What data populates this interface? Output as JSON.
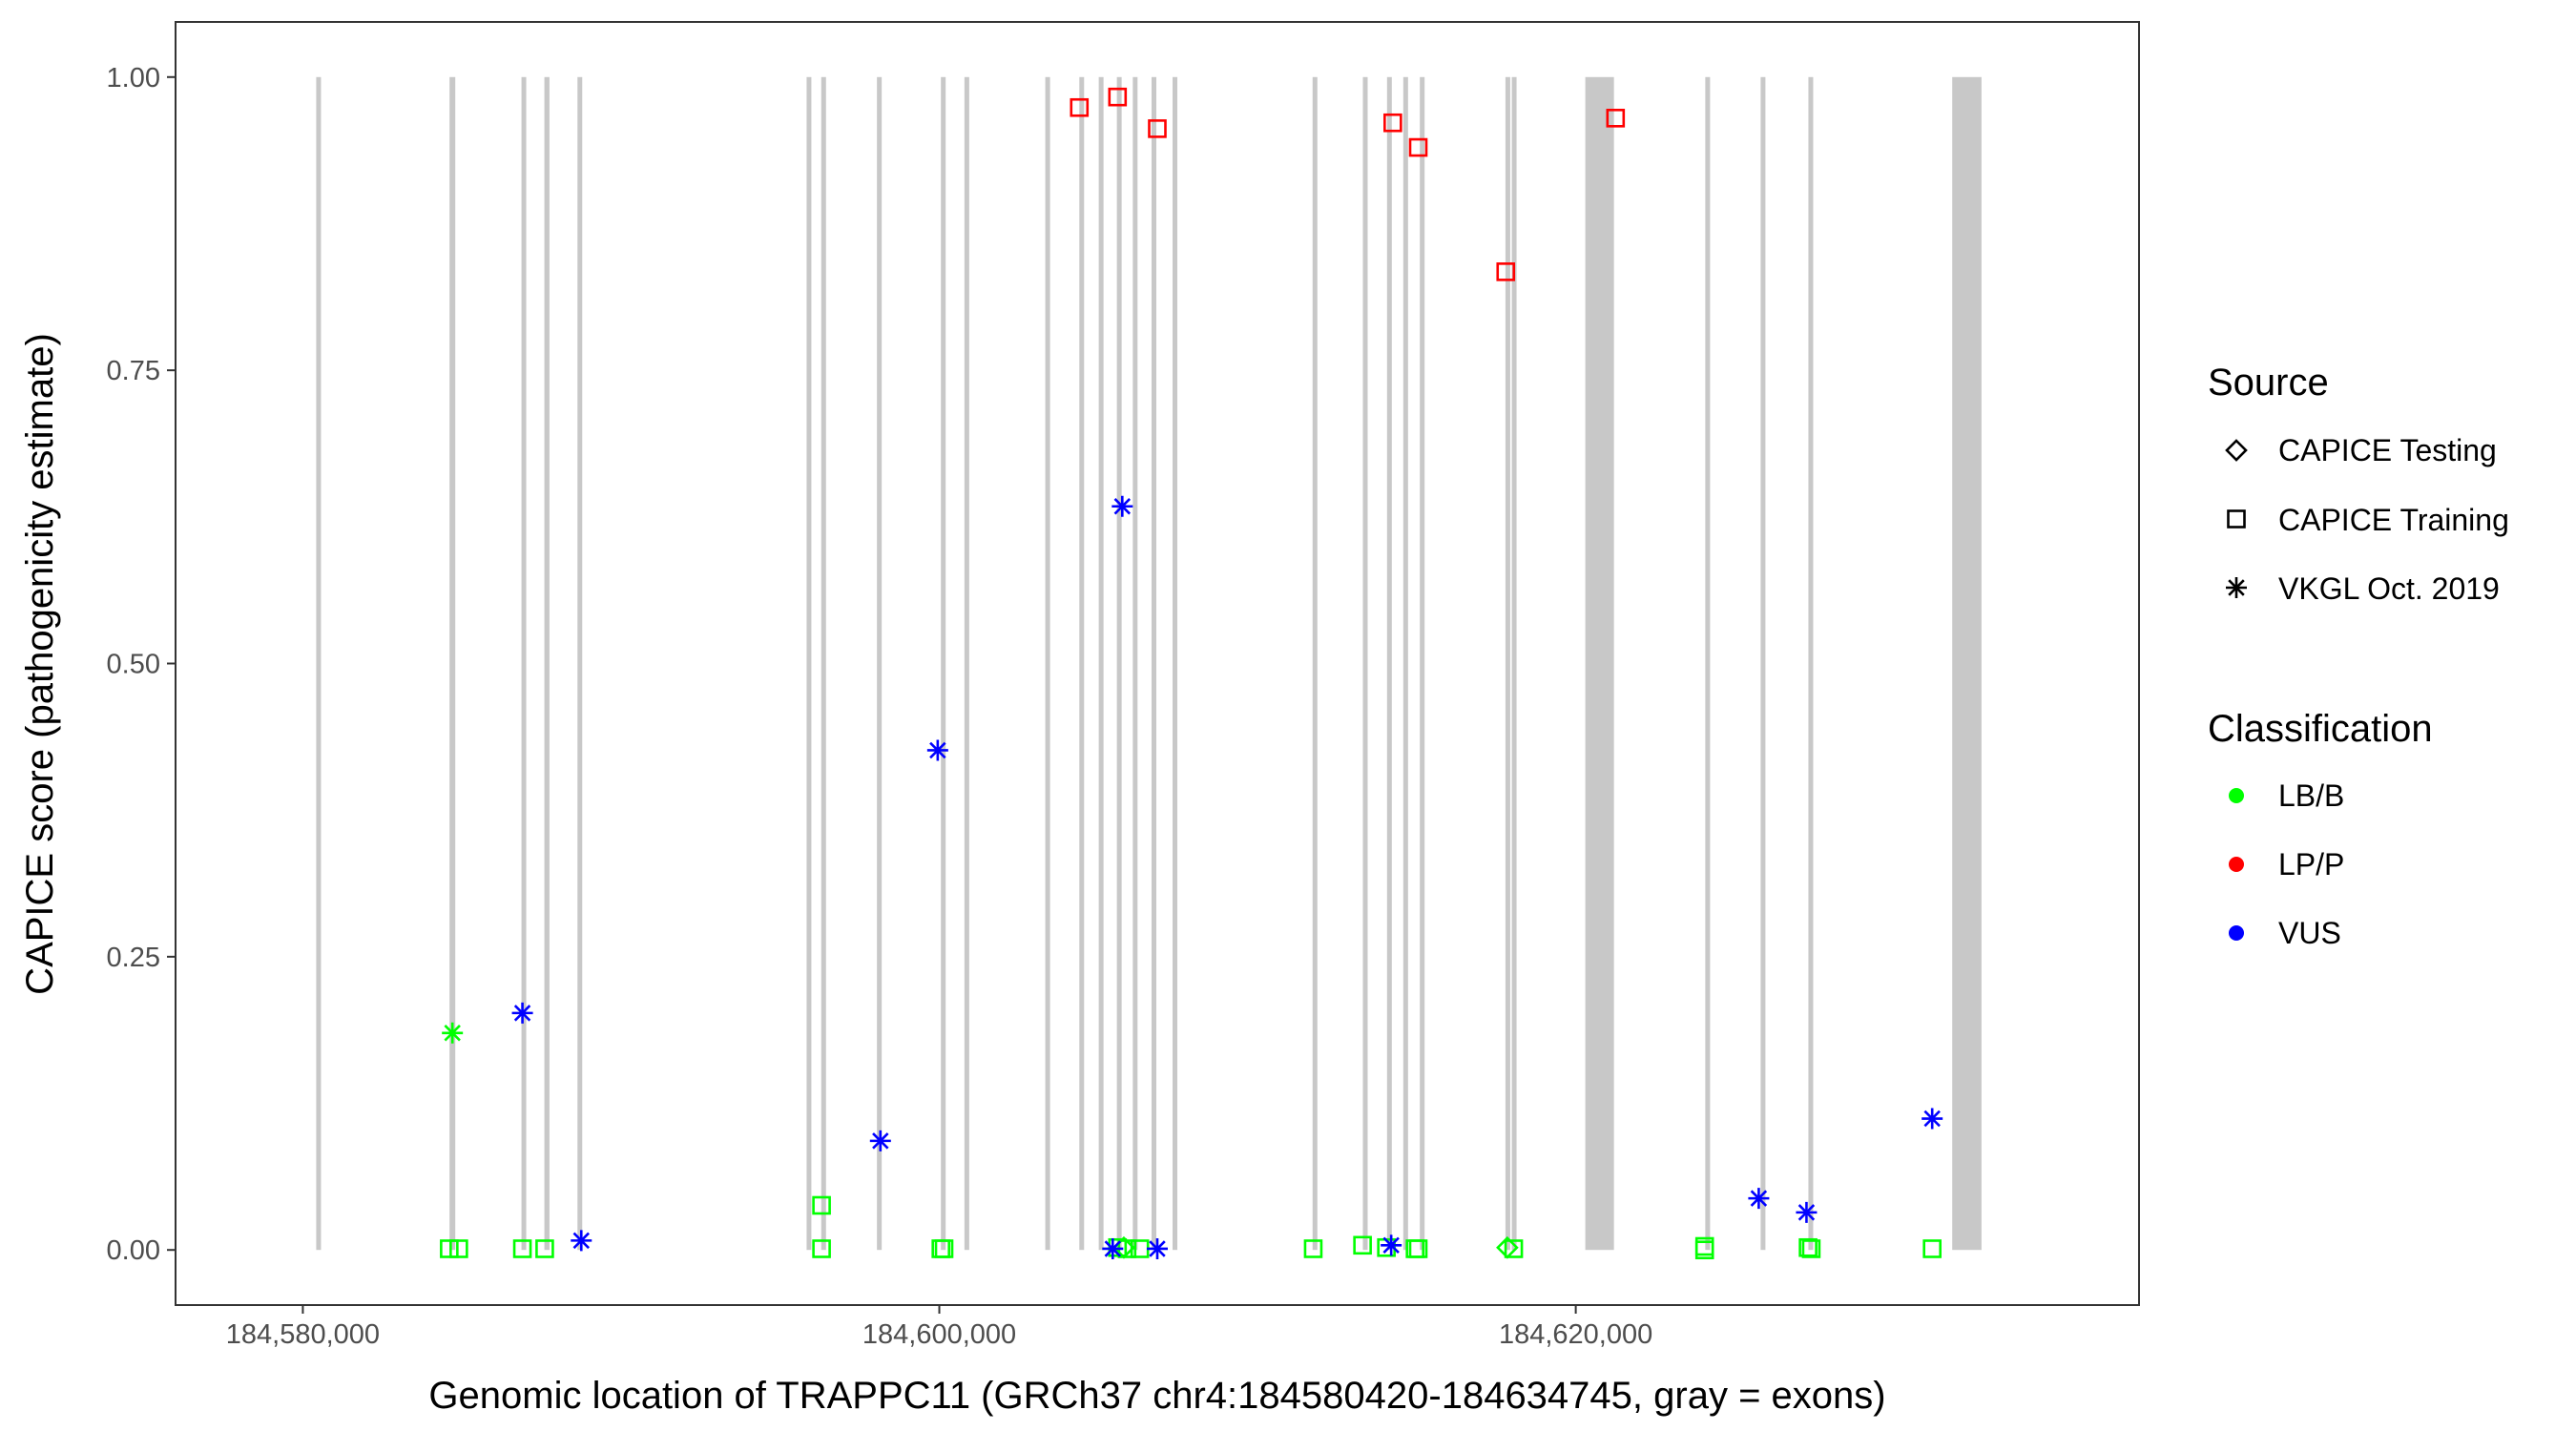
{
  "chart_data": {
    "type": "scatter",
    "xlabel": "Genomic location of TRAPPC11 (GRCh37 chr4:184580420-184634745, gray = exons)",
    "ylabel": "CAPICE score (pathogenicity estimate)",
    "xlim": [
      184576000,
      184637700
    ],
    "ylim": [
      -0.047,
      1.047
    ],
    "x_ticks": [
      184580000,
      184600000,
      184620000
    ],
    "x_tick_labels": [
      "184,580,000",
      "184,600,000",
      "184,620,000"
    ],
    "y_ticks": [
      0,
      0.25,
      0.5,
      0.75,
      1
    ],
    "y_tick_labels": [
      "0.00",
      "0.25",
      "0.50",
      "0.75",
      "1.00"
    ],
    "grid": false,
    "legend_position": "right",
    "exons": [
      [
        184580420,
        184580530
      ],
      [
        184584610,
        184584790
      ],
      [
        184586870,
        184586990
      ],
      [
        184587590,
        184587750
      ],
      [
        184588630,
        184588720
      ],
      [
        184595830,
        184595920
      ],
      [
        184596290,
        184596380
      ],
      [
        184598040,
        184598130
      ],
      [
        184600050,
        184600140
      ],
      [
        184600790,
        184600880
      ],
      [
        184603330,
        184603420
      ],
      [
        184604400,
        184604490
      ],
      [
        184605010,
        184605100
      ],
      [
        184605580,
        184605670
      ],
      [
        184606080,
        184606170
      ],
      [
        184606670,
        184606760
      ],
      [
        184607330,
        184607420
      ],
      [
        184611730,
        184611820
      ],
      [
        184613310,
        184613400
      ],
      [
        184614070,
        184614160
      ],
      [
        184614580,
        184614670
      ],
      [
        184615100,
        184615190
      ],
      [
        184617790,
        184617880
      ],
      [
        184617990,
        184618080
      ],
      [
        184620300,
        184621200
      ],
      [
        184624070,
        184624160
      ],
      [
        184625810,
        184625900
      ],
      [
        184627310,
        184627400
      ],
      [
        184631830,
        184632750
      ]
    ],
    "legend": {
      "source": {
        "title": "Source",
        "items": [
          {
            "label": "CAPICE Testing",
            "shape": "diamond"
          },
          {
            "label": "CAPICE Training",
            "shape": "square"
          },
          {
            "label": "VKGL Oct. 2019",
            "shape": "asterisk"
          }
        ]
      },
      "classification": {
        "title": "Classification",
        "items": [
          {
            "label": "LB/B",
            "color": "#00ff00"
          },
          {
            "label": "LP/P",
            "color": "#ff0000"
          },
          {
            "label": "VUS",
            "color": "#0000ff"
          }
        ]
      }
    },
    "colors": {
      "LB/B": "#00ff00",
      "LP/P": "#ff0000",
      "VUS": "#0000ff",
      "exon": "#c8c8c8"
    },
    "points": [
      {
        "x": 184604400,
        "y": 0.974,
        "source": "CAPICE Training",
        "class": "LP/P"
      },
      {
        "x": 184605600,
        "y": 0.983,
        "source": "CAPICE Training",
        "class": "LP/P"
      },
      {
        "x": 184606850,
        "y": 0.956,
        "source": "CAPICE Training",
        "class": "LP/P"
      },
      {
        "x": 184614250,
        "y": 0.961,
        "source": "CAPICE Training",
        "class": "LP/P"
      },
      {
        "x": 184615050,
        "y": 0.94,
        "source": "CAPICE Training",
        "class": "LP/P"
      },
      {
        "x": 184617800,
        "y": 0.834,
        "source": "CAPICE Training",
        "class": "LP/P"
      },
      {
        "x": 184621250,
        "y": 0.965,
        "source": "CAPICE Training",
        "class": "LP/P"
      },
      {
        "x": 184584600,
        "y": 0.001,
        "source": "CAPICE Training",
        "class": "LB/B"
      },
      {
        "x": 184584900,
        "y": 0.001,
        "source": "CAPICE Training",
        "class": "LB/B"
      },
      {
        "x": 184586900,
        "y": 0.001,
        "source": "CAPICE Training",
        "class": "LB/B"
      },
      {
        "x": 184587600,
        "y": 0.001,
        "source": "CAPICE Training",
        "class": "LB/B"
      },
      {
        "x": 184596300,
        "y": 0.038,
        "source": "CAPICE Training",
        "class": "LB/B"
      },
      {
        "x": 184596300,
        "y": 0.001,
        "source": "CAPICE Training",
        "class": "LB/B"
      },
      {
        "x": 184600050,
        "y": 0.001,
        "source": "CAPICE Training",
        "class": "LB/B"
      },
      {
        "x": 184600150,
        "y": 0.001,
        "source": "CAPICE Training",
        "class": "LB/B"
      },
      {
        "x": 184605600,
        "y": 0.002,
        "source": "CAPICE Training",
        "class": "LB/B"
      },
      {
        "x": 184605900,
        "y": 0.001,
        "source": "CAPICE Training",
        "class": "LB/B"
      },
      {
        "x": 184606300,
        "y": 0.001,
        "source": "CAPICE Training",
        "class": "LB/B"
      },
      {
        "x": 184611750,
        "y": 0.001,
        "source": "CAPICE Training",
        "class": "LB/B"
      },
      {
        "x": 184613300,
        "y": 0.004,
        "source": "CAPICE Training",
        "class": "LB/B"
      },
      {
        "x": 184614050,
        "y": 0.002,
        "source": "CAPICE Training",
        "class": "LB/B"
      },
      {
        "x": 184614950,
        "y": 0.001,
        "source": "CAPICE Training",
        "class": "LB/B"
      },
      {
        "x": 184615050,
        "y": 0.001,
        "source": "CAPICE Training",
        "class": "LB/B"
      },
      {
        "x": 184618050,
        "y": 0.001,
        "source": "CAPICE Training",
        "class": "LB/B"
      },
      {
        "x": 184624050,
        "y": 0.003,
        "source": "CAPICE Training",
        "class": "LB/B"
      },
      {
        "x": 184624050,
        "y": 0.0,
        "source": "CAPICE Training",
        "class": "LB/B"
      },
      {
        "x": 184627300,
        "y": 0.002,
        "source": "CAPICE Training",
        "class": "LB/B"
      },
      {
        "x": 184627400,
        "y": 0.001,
        "source": "CAPICE Training",
        "class": "LB/B"
      },
      {
        "x": 184631200,
        "y": 0.001,
        "source": "CAPICE Training",
        "class": "LB/B"
      },
      {
        "x": 184605800,
        "y": 0.002,
        "source": "CAPICE Testing",
        "class": "LB/B"
      },
      {
        "x": 184617850,
        "y": 0.002,
        "source": "CAPICE Testing",
        "class": "LB/B"
      },
      {
        "x": 184584700,
        "y": 0.185,
        "source": "VKGL Oct. 2019",
        "class": "LB/B"
      },
      {
        "x": 184586900,
        "y": 0.202,
        "source": "VKGL Oct. 2019",
        "class": "VUS"
      },
      {
        "x": 184588750,
        "y": 0.008,
        "source": "VKGL Oct. 2019",
        "class": "VUS"
      },
      {
        "x": 184598150,
        "y": 0.093,
        "source": "VKGL Oct. 2019",
        "class": "VUS"
      },
      {
        "x": 184599950,
        "y": 0.426,
        "source": "VKGL Oct. 2019",
        "class": "VUS"
      },
      {
        "x": 184605750,
        "y": 0.634,
        "source": "VKGL Oct. 2019",
        "class": "VUS"
      },
      {
        "x": 184605450,
        "y": 0.001,
        "source": "VKGL Oct. 2019",
        "class": "VUS"
      },
      {
        "x": 184606850,
        "y": 0.001,
        "source": "VKGL Oct. 2019",
        "class": "VUS"
      },
      {
        "x": 184614200,
        "y": 0.004,
        "source": "VKGL Oct. 2019",
        "class": "VUS"
      },
      {
        "x": 184625750,
        "y": 0.044,
        "source": "VKGL Oct. 2019",
        "class": "VUS"
      },
      {
        "x": 184627250,
        "y": 0.032,
        "source": "VKGL Oct. 2019",
        "class": "VUS"
      },
      {
        "x": 184631200,
        "y": 0.112,
        "source": "VKGL Oct. 2019",
        "class": "VUS"
      }
    ]
  }
}
